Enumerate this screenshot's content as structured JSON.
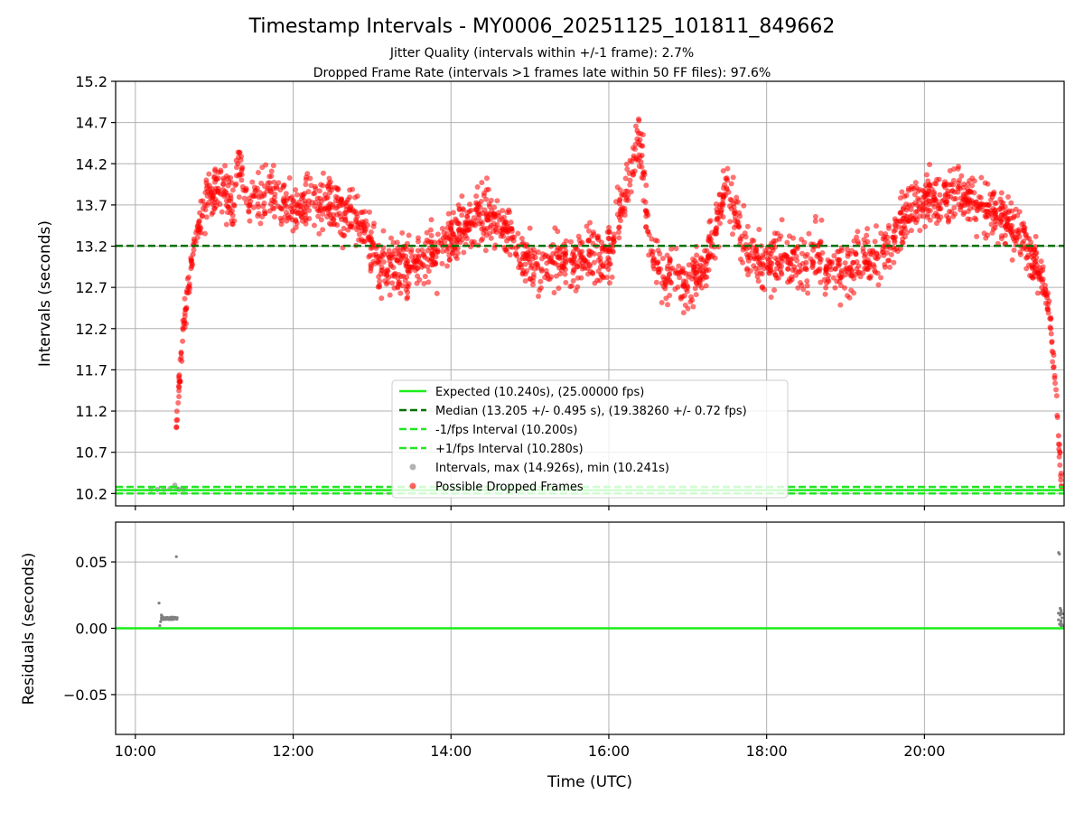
{
  "chart_data": [
    {
      "type": "scatter",
      "title": "Timestamp Intervals - MY0006_20251125_101811_849662",
      "subtitle_lines": [
        "Jitter Quality (intervals within +/-1 frame): 2.7%",
        "Dropped Frame Rate (intervals >1 frames late within 50 FF files): 97.6%"
      ],
      "xlabel": "",
      "ylabel": "Intervals (seconds)",
      "xlim": [
        9.75,
        21.77
      ],
      "ylim": [
        10.05,
        15.2
      ],
      "yticks": [
        10.2,
        10.7,
        11.2,
        11.7,
        12.2,
        12.7,
        13.2,
        13.7,
        14.2,
        14.7,
        15.2
      ],
      "ytick_labels": [
        "10.2",
        "10.7",
        "11.2",
        "11.7",
        "12.2",
        "12.7",
        "13.2",
        "13.7",
        "14.2",
        "14.7",
        "15.2"
      ],
      "xticks": [
        10,
        12,
        14,
        16,
        18,
        20
      ],
      "grid": true,
      "legend_position": "lower-center",
      "reference_lines": [
        {
          "name": "Expected (10.240s), (25.00000 fps)",
          "y": 10.24,
          "color": "#1aee1a",
          "style": "solid"
        },
        {
          "name": "Median (13.205 +/- 0.495 s), (19.38260 +/- 0.72 fps)",
          "y": 13.205,
          "color": "#007000",
          "style": "dashed"
        },
        {
          "name": "-1/fps Interval (10.200s)",
          "y": 10.2,
          "color": "#22e622",
          "style": "dashed"
        },
        {
          "name": "+1/fps Interval (10.280s)",
          "y": 10.28,
          "color": "#22e622",
          "style": "dashed"
        }
      ],
      "series": [
        {
          "name": "Intervals, max (14.926s), min (10.241s)",
          "color": "#808080",
          "kind": "scatter",
          "max": 14.926,
          "min": 10.241
        },
        {
          "name": "Possible Dropped Frames",
          "color": "#ff0000",
          "kind": "scatter"
        }
      ],
      "intervals_series": {
        "x": [
          10.2,
          10.28,
          10.36,
          10.44,
          10.5,
          10.52,
          10.55,
          10.6,
          10.63
        ],
        "y": [
          10.25,
          10.25,
          10.25,
          10.26,
          10.3,
          10.26,
          10.25,
          10.25,
          10.25
        ]
      },
      "dropped_frames_series": {
        "x": [
          10.52,
          10.55,
          10.58,
          10.62,
          10.67,
          10.73,
          10.8,
          10.88,
          10.96,
          11.05,
          11.15,
          11.25,
          11.3,
          11.45,
          11.6,
          11.75,
          11.9,
          12.05,
          12.2,
          12.35,
          12.5,
          12.65,
          12.8,
          12.95,
          13.05,
          13.2,
          13.35,
          13.5,
          13.65,
          13.8,
          13.95,
          14.1,
          14.25,
          14.4,
          14.55,
          14.7,
          14.85,
          15.0,
          15.15,
          15.3,
          15.45,
          15.6,
          15.75,
          15.9,
          16.05,
          16.15,
          16.3,
          16.36,
          16.42,
          16.48,
          16.55,
          16.7,
          16.85,
          17.0,
          17.15,
          17.3,
          17.45,
          17.5,
          17.6,
          17.75,
          17.9,
          18.05,
          18.2,
          18.35,
          18.5,
          18.65,
          18.8,
          18.95,
          19.1,
          19.25,
          19.4,
          19.55,
          19.7,
          19.85,
          20.0,
          20.15,
          20.3,
          20.45,
          20.6,
          20.75,
          20.9,
          21.05,
          21.2,
          21.3,
          21.4,
          21.48,
          21.55,
          21.6,
          21.65,
          21.7,
          21.74
        ],
        "y": [
          11.0,
          11.5,
          11.9,
          12.3,
          12.7,
          13.1,
          13.4,
          13.7,
          13.85,
          13.9,
          13.85,
          13.7,
          14.2,
          13.7,
          13.8,
          13.9,
          13.7,
          13.6,
          13.75,
          13.65,
          13.7,
          13.6,
          13.5,
          13.3,
          13.1,
          12.9,
          13.0,
          12.95,
          13.1,
          13.0,
          13.3,
          13.4,
          13.5,
          13.6,
          13.55,
          13.4,
          13.2,
          13.0,
          12.9,
          13.0,
          13.05,
          12.95,
          13.1,
          13.0,
          13.2,
          13.6,
          14.1,
          14.6,
          14.3,
          13.6,
          13.1,
          12.8,
          12.9,
          12.7,
          12.9,
          13.2,
          13.8,
          14.0,
          13.6,
          13.1,
          13.0,
          13.0,
          13.05,
          12.95,
          13.0,
          13.1,
          12.95,
          12.9,
          13.0,
          13.1,
          13.05,
          13.2,
          13.5,
          13.7,
          13.8,
          13.75,
          13.8,
          13.9,
          13.75,
          13.7,
          13.6,
          13.5,
          13.4,
          13.2,
          13.0,
          12.8,
          12.6,
          12.2,
          11.6,
          10.9,
          10.28
        ]
      }
    },
    {
      "type": "scatter",
      "title": "",
      "xlabel": "Time (UTC)",
      "ylabel": "Residuals (seconds)",
      "xlim": [
        9.75,
        21.77
      ],
      "ylim": [
        -0.08,
        0.08
      ],
      "yticks": [
        -0.05,
        0.0,
        0.05
      ],
      "ytick_labels": [
        "−0.05",
        "0.00",
        "0.05"
      ],
      "xticks": [
        10,
        12,
        14,
        16,
        18,
        20
      ],
      "xtick_labels": [
        "10:00",
        "12:00",
        "14:00",
        "16:00",
        "18:00",
        "20:00"
      ],
      "grid": true,
      "reference_lines": [
        {
          "name": "zero",
          "y": 0.0,
          "color": "#1aee1a",
          "style": "solid"
        }
      ],
      "series": [
        {
          "name": "Residuals",
          "color": "#808080",
          "x": [
            10.3,
            10.31,
            10.32,
            10.33,
            10.34,
            10.35,
            10.36,
            10.38,
            10.4,
            10.42,
            10.44,
            10.46,
            10.48,
            10.5,
            10.52,
            10.53,
            21.7,
            21.71,
            21.72,
            21.73,
            21.74,
            21.72,
            21.73
          ],
          "y": [
            0.019,
            0.002,
            0.005,
            0.01,
            0.009,
            0.007,
            0.008,
            0.007,
            0.008,
            0.007,
            0.008,
            0.007,
            0.008,
            0.007,
            0.054,
            0.008,
            0.057,
            0.056,
            0.015,
            0.005,
            0.003,
            0.01,
            0.002
          ]
        }
      ]
    }
  ]
}
